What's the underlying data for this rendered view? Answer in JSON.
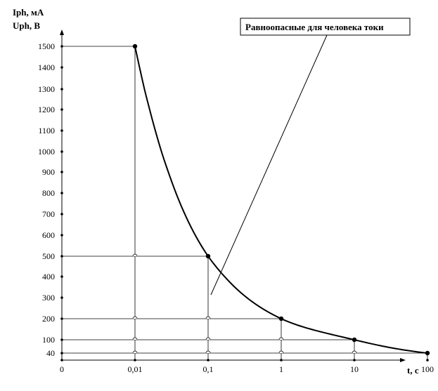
{
  "chart_data": {
    "type": "line",
    "ylabel_lines": [
      "Iph, мА",
      "Uph, В"
    ],
    "xlabel": "t,  c",
    "x_ticks": [
      "0",
      "0,01",
      "0,1",
      "1",
      "10",
      "100"
    ],
    "y_ticks": [
      40,
      100,
      200,
      300,
      400,
      500,
      600,
      700,
      800,
      900,
      1000,
      1100,
      1200,
      1300,
      1400,
      1500
    ],
    "y_tick_labels": [
      "40",
      "100",
      "200",
      "300",
      "400",
      "500",
      "600",
      "700",
      "800",
      "900",
      "1000",
      "1100",
      "1200",
      "1300",
      "1400",
      "1500"
    ],
    "ylim": [
      0,
      1500
    ],
    "grid": false,
    "series": [
      {
        "x": [
          0.01,
          0.1,
          1,
          10,
          100
        ],
        "values": [
          1500,
          500,
          200,
          100,
          40
        ]
      }
    ],
    "annotation": "Равноопасные для человека токи"
  }
}
